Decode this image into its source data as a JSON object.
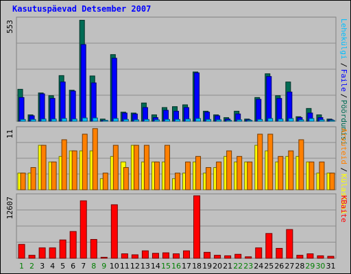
{
  "chart_data": [
    {
      "type": "bar",
      "title": "Kasutuspäevad Detsember 2007",
      "categories": [
        "1",
        "2",
        "3",
        "4",
        "5",
        "6",
        "7",
        "8",
        "9",
        "10",
        "11",
        "12",
        "13",
        "14",
        "15",
        "16",
        "17",
        "18",
        "19",
        "20",
        "21",
        "22",
        "23",
        "24",
        "25",
        "26",
        "27",
        "28",
        "29",
        "30",
        "31"
      ],
      "weekend_days": [
        "1",
        "2",
        "8",
        "9",
        "15",
        "16",
        "22",
        "23",
        "29",
        "30"
      ],
      "ylim": [
        0,
        553
      ],
      "y_tick_label": "553",
      "series": [
        {
          "name": "Pöördumisi",
          "color": "#006b54",
          "values": [
            175,
            35,
            155,
            140,
            250,
            170,
            553,
            248,
            12,
            365,
            50,
            45,
            100,
            35,
            75,
            80,
            90,
            270,
            55,
            35,
            20,
            55,
            12,
            130,
            260,
            140,
            215,
            25,
            70,
            35,
            12
          ]
        },
        {
          "name": "Faile",
          "color": "#0000ff",
          "values": [
            130,
            30,
            150,
            125,
            215,
            165,
            420,
            210,
            5,
            345,
            45,
            40,
            75,
            20,
            60,
            55,
            75,
            265,
            50,
            30,
            12,
            40,
            8,
            120,
            245,
            125,
            160,
            20,
            45,
            20,
            8
          ]
        },
        {
          "name": "Lehekülgi",
          "color": "#00bfff",
          "values": [
            10,
            10,
            12,
            12,
            15,
            12,
            18,
            18,
            5,
            15,
            10,
            8,
            10,
            8,
            10,
            10,
            12,
            15,
            10,
            8,
            5,
            8,
            5,
            10,
            15,
            12,
            15,
            8,
            15,
            8,
            5
          ]
        }
      ],
      "legend": "right, vertical"
    },
    {
      "type": "bar",
      "categories": [
        "1",
        "2",
        "3",
        "4",
        "5",
        "6",
        "7",
        "8",
        "9",
        "10",
        "11",
        "12",
        "13",
        "14",
        "15",
        "16",
        "17",
        "18",
        "19",
        "20",
        "21",
        "22",
        "23",
        "24",
        "25",
        "26",
        "27",
        "28",
        "29",
        "30",
        "31"
      ],
      "ylim": [
        0,
        11
      ],
      "y_tick_label": "11",
      "series": [
        {
          "name": "Külastusi",
          "color": "#ffff00",
          "values": [
            3,
            3,
            8,
            5,
            6,
            7,
            7,
            7,
            2,
            6,
            5,
            8,
            5,
            5,
            5,
            2,
            3,
            5,
            3,
            4,
            6,
            5,
            5,
            8,
            7,
            5,
            6,
            6,
            5,
            3,
            3
          ]
        },
        {
          "name": "Arvuteid",
          "color": "#ff8000",
          "values": [
            3,
            4,
            8,
            5,
            9,
            7,
            10,
            11,
            3,
            8,
            4,
            8,
            8,
            5,
            8,
            3,
            5,
            6,
            4,
            5,
            7,
            6,
            5,
            10,
            10,
            6,
            7,
            9,
            5,
            5,
            3
          ]
        }
      ],
      "legend": "right, vertical"
    },
    {
      "type": "bar",
      "categories": [
        "1",
        "2",
        "3",
        "4",
        "5",
        "6",
        "7",
        "8",
        "9",
        "10",
        "11",
        "12",
        "13",
        "14",
        "15",
        "16",
        "17",
        "18",
        "19",
        "20",
        "21",
        "22",
        "23",
        "24",
        "25",
        "26",
        "27",
        "28",
        "29",
        "30",
        "31"
      ],
      "ylim": [
        0,
        12607
      ],
      "y_tick_label": "12607",
      "series": [
        {
          "name": "KBaite",
          "color": "#ff0000",
          "values": [
            2800,
            600,
            2100,
            2100,
            3700,
            5400,
            11600,
            3800,
            200,
            10800,
            900,
            700,
            1500,
            1000,
            1100,
            900,
            1500,
            12607,
            1200,
            600,
            500,
            800,
            300,
            2100,
            5000,
            2000,
            5800,
            600,
            900,
            500,
            400
          ]
        }
      ],
      "legend": "right, vertical"
    }
  ]
}
